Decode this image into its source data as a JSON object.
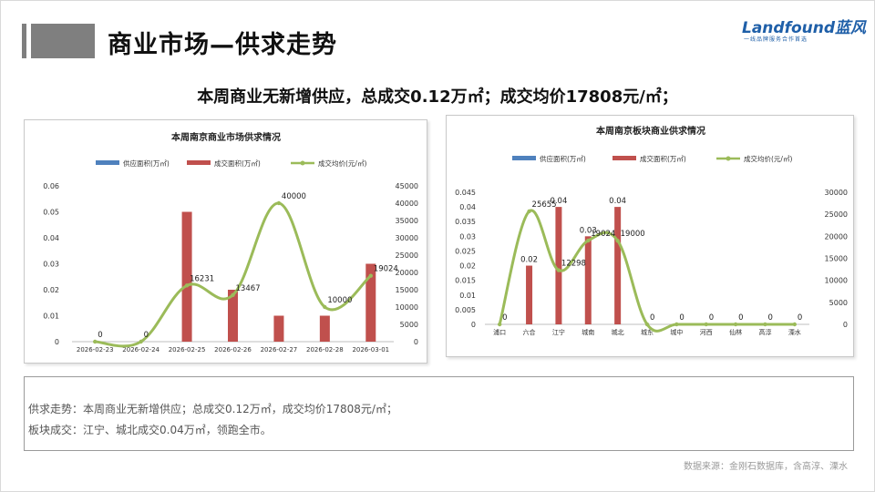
{
  "header": {
    "title": "商业市场—供求走势",
    "logo": "Landfound蓝风",
    "logo_tagline": "一线品牌服务合作首选"
  },
  "headline": "本周商业无新增供应，总成交0.12万㎡；成交均价17808元/㎡；",
  "summary": {
    "line1": "供求走势：本周商业无新增供应；总成交0.12万㎡，成交均价17808元/㎡；",
    "line2": "板块成交：江宁、城北成交0.04万㎡，领跑全市。"
  },
  "source": "数据来源：金刚石数据库，含高淳、溧水",
  "colors": {
    "supply": "#4f81bd",
    "deal": "#c0504d",
    "price": "#9bbb59",
    "grid": "#d9d9d9"
  },
  "chart_data": [
    {
      "type": "bar",
      "title": "本周南京商业市场供求情况",
      "categories": [
        "2026-02-23",
        "2026-02-24",
        "2026-02-25",
        "2026-02-26",
        "2026-02-27",
        "2026-02-28",
        "2026-03-01"
      ],
      "series": [
        {
          "name": "供应面积(万㎡)",
          "kind": "bar",
          "axis": "left",
          "values": [
            0,
            0,
            0,
            0,
            0,
            0,
            0
          ]
        },
        {
          "name": "成交面积(万㎡)",
          "kind": "bar",
          "axis": "left",
          "values": [
            0,
            0,
            0.05,
            0.02,
            0.01,
            0.01,
            0.03
          ]
        },
        {
          "name": "成交均价(元/㎡)",
          "kind": "line",
          "axis": "right",
          "values": [
            0,
            0,
            16231,
            13467,
            40000,
            10000,
            19024
          ],
          "labels": [
            "0",
            "0",
            "16231",
            "13467",
            "40000",
            "10000",
            "19024"
          ]
        }
      ],
      "ylim": [
        0,
        0.06
      ],
      "y2lim": [
        0,
        45000
      ],
      "yticks": [
        "0",
        "0.01",
        "0.02",
        "0.03",
        "0.04",
        "0.05",
        "0.06"
      ],
      "y2ticks": [
        "0",
        "5000",
        "10000",
        "15000",
        "20000",
        "25000",
        "30000",
        "35000",
        "40000",
        "45000"
      ],
      "legend": "top"
    },
    {
      "type": "bar",
      "title": "本周南京板块商业供求情况",
      "categories": [
        "浦口",
        "六合",
        "江宁",
        "城南",
        "城北",
        "城东",
        "城中",
        "河西",
        "仙林",
        "高淳",
        "溧水"
      ],
      "series": [
        {
          "name": "供应面积(万㎡)",
          "kind": "bar",
          "axis": "left",
          "values": [
            0,
            0,
            0,
            0,
            0,
            0,
            0,
            0,
            0,
            0,
            0
          ]
        },
        {
          "name": "成交面积(万㎡)",
          "kind": "bar",
          "axis": "left",
          "values": [
            0,
            0.02,
            0.04,
            0.03,
            0.04,
            0,
            0,
            0,
            0,
            0,
            0
          ],
          "labels": [
            "",
            "0.02",
            "0.04",
            "0.03",
            "0.04",
            "",
            "",
            "",
            "",
            "",
            ""
          ]
        },
        {
          "name": "成交均价(元/㎡)",
          "kind": "line",
          "axis": "right",
          "values": [
            0,
            25655,
            12298,
            19024,
            19000,
            0,
            0,
            0,
            0,
            0,
            0
          ],
          "labels": [
            "0",
            "25655",
            "12298",
            "19024",
            "19000",
            "0",
            "0",
            "0",
            "0",
            "0",
            "0"
          ]
        }
      ],
      "ylim": [
        0,
        0.045
      ],
      "y2lim": [
        0,
        30000
      ],
      "yticks": [
        "0",
        "0.005",
        "0.01",
        "0.015",
        "0.02",
        "0.025",
        "0.03",
        "0.035",
        "0.04",
        "0.045"
      ],
      "y2ticks": [
        "0",
        "5000",
        "10000",
        "15000",
        "20000",
        "25000",
        "30000"
      ],
      "legend": "top"
    }
  ]
}
